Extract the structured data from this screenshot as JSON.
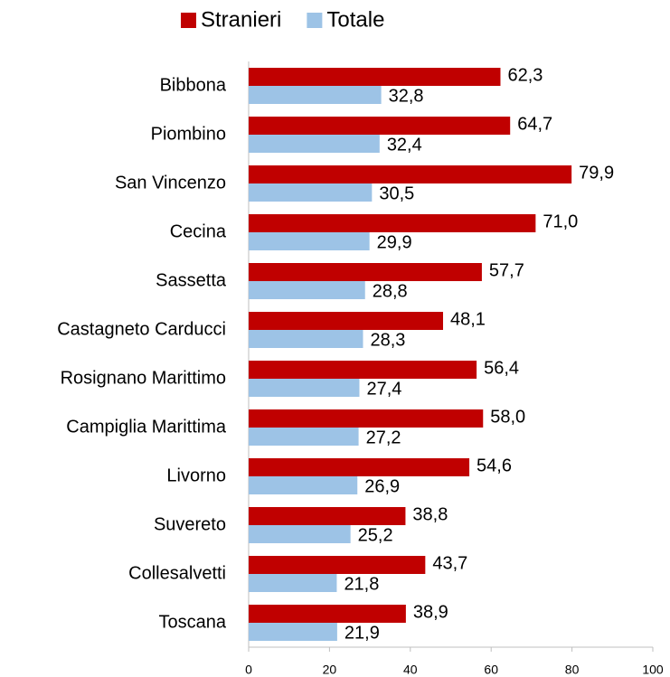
{
  "chart_data": {
    "type": "bar",
    "orientation": "horizontal",
    "categories": [
      "Bibbona",
      "Piombino",
      "San Vincenzo",
      "Cecina",
      "Sassetta",
      "Castagneto Carducci",
      "Rosignano Marittimo",
      "Campiglia Marittima",
      "Livorno",
      "Suvereto",
      "Collesalvetti",
      "Toscana"
    ],
    "series": [
      {
        "name": "Stranieri",
        "color": "#c00000",
        "values": [
          62.3,
          64.7,
          79.9,
          71.0,
          57.7,
          48.1,
          56.4,
          58.0,
          54.6,
          38.8,
          43.7,
          38.9
        ],
        "value_labels": [
          "62,3",
          "64,7",
          "79,9",
          "71,0",
          "57,7",
          "48,1",
          "56,4",
          "58,0",
          "54,6",
          "38,8",
          "43,7",
          "38,9"
        ]
      },
      {
        "name": "Totale",
        "color": "#9dc3e6",
        "values": [
          32.8,
          32.4,
          30.5,
          29.9,
          28.8,
          28.3,
          27.4,
          27.2,
          26.9,
          25.2,
          21.8,
          21.9
        ],
        "value_labels": [
          "32,8",
          "32,4",
          "30,5",
          "29,9",
          "28,8",
          "28,3",
          "27,4",
          "27,2",
          "26,9",
          "25,2",
          "21,8",
          "21,9"
        ]
      }
    ],
    "xlim": [
      0,
      100
    ],
    "xticks": [
      0,
      20,
      40,
      60,
      80,
      100
    ],
    "legend": "top"
  }
}
